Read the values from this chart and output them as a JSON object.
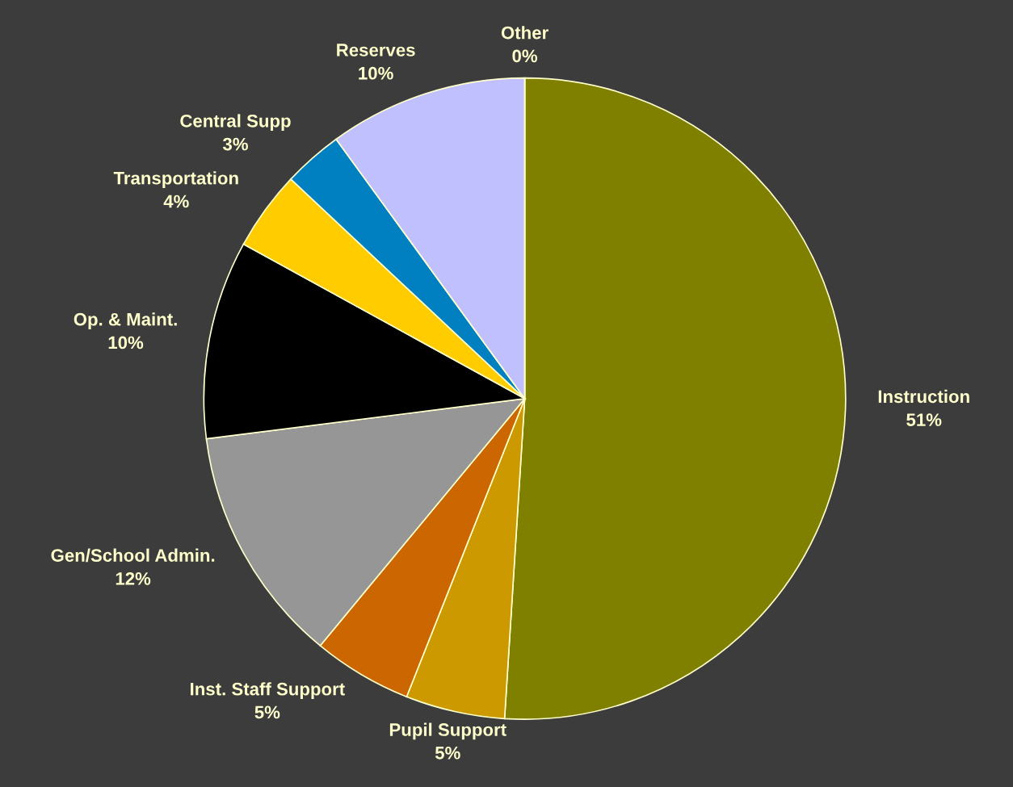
{
  "chart_data": {
    "type": "pie",
    "categories": [
      "Instruction",
      "Pupil Support",
      "Inst. Staff Support",
      "Gen/School Admin.",
      "Op. & Maint.",
      "Transportation",
      "Central Supp",
      "Reserves",
      "Other"
    ],
    "values": [
      51,
      5,
      5,
      12,
      10,
      4,
      3,
      10,
      0
    ],
    "value_labels": [
      "51%",
      "5%",
      "5%",
      "12%",
      "10%",
      "4%",
      "3%",
      "10%",
      "0%"
    ],
    "colors": [
      "#808000",
      "#cc9900",
      "#cc6600",
      "#969696",
      "#000000",
      "#ffcc00",
      "#0080c0",
      "#c0c0ff",
      "#ff0000"
    ]
  }
}
